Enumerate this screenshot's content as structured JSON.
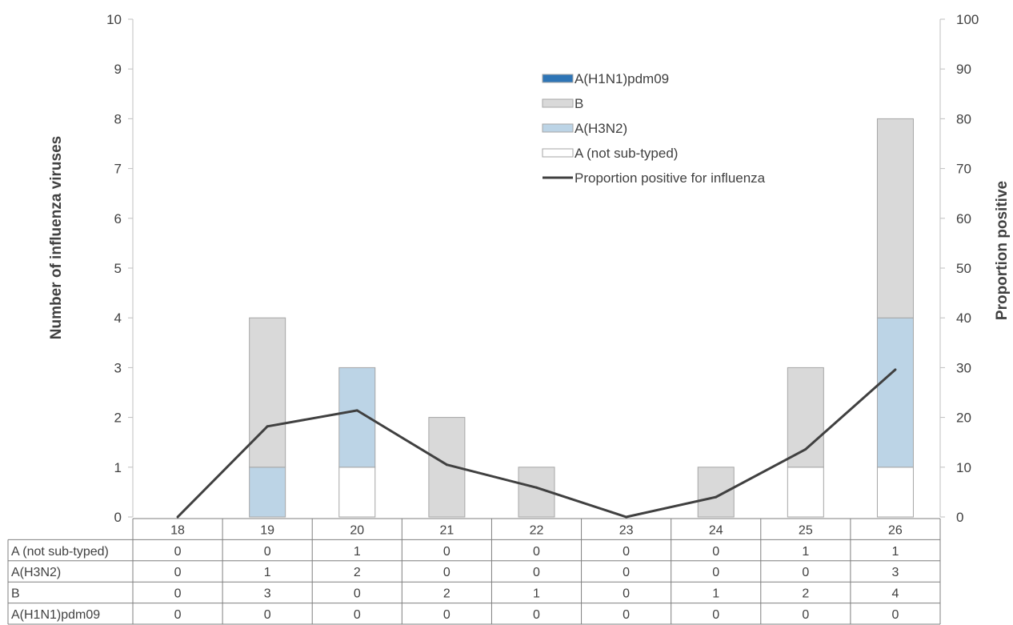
{
  "chart_data": {
    "type": "bar",
    "stacked": true,
    "categories": [
      "18",
      "19",
      "20",
      "21",
      "22",
      "23",
      "24",
      "25",
      "26"
    ],
    "series": [
      {
        "name": "A (not sub-typed)",
        "values": [
          0,
          0,
          1,
          0,
          0,
          0,
          0,
          1,
          1
        ],
        "color": "#ffffff"
      },
      {
        "name": "A(H3N2)",
        "values": [
          0,
          1,
          2,
          0,
          0,
          0,
          0,
          0,
          3
        ],
        "color": "#bcd4e6"
      },
      {
        "name": "B",
        "values": [
          0,
          3,
          0,
          2,
          1,
          0,
          1,
          2,
          4
        ],
        "color": "#d9d9d9"
      },
      {
        "name": "A(H1N1)pdm09",
        "values": [
          0,
          0,
          0,
          0,
          0,
          0,
          0,
          0,
          0
        ],
        "color": "#2e75b6"
      }
    ],
    "line": {
      "name": "Proportion positive for influenza",
      "values": [
        0,
        18.2,
        21.4,
        10.5,
        5.9,
        0,
        4.0,
        13.6,
        29.6
      ],
      "color": "#404040",
      "axis": "right"
    },
    "legend_order": [
      "A(H1N1)pdm09",
      "B",
      "A(H3N2)",
      "A (not sub-typed)",
      "Proportion positive for influenza"
    ],
    "legend_position": "top-right",
    "ylabel": "Number of influenza viruses",
    "ylabel_right": "Proportion positive",
    "ylim": [
      0,
      10
    ],
    "ylim_right": [
      0,
      100
    ],
    "yticks": [
      "0",
      "1",
      "2",
      "3",
      "4",
      "5",
      "6",
      "7",
      "8",
      "9",
      "10"
    ],
    "yticks_right": [
      "0",
      "10",
      "20",
      "30",
      "40",
      "50",
      "60",
      "70",
      "80",
      "90",
      "100"
    ],
    "grid": false,
    "data_table": {
      "rows": [
        {
          "label": "A (not sub-typed)",
          "values": [
            "0",
            "0",
            "1",
            "0",
            "0",
            "0",
            "0",
            "1",
            "1"
          ]
        },
        {
          "label": "A(H3N2)",
          "values": [
            "0",
            "1",
            "2",
            "0",
            "0",
            "0",
            "0",
            "0",
            "3"
          ]
        },
        {
          "label": "B",
          "values": [
            "0",
            "3",
            "0",
            "2",
            "1",
            "0",
            "1",
            "2",
            "4"
          ]
        },
        {
          "label": "A(H1N1)pdm09",
          "values": [
            "0",
            "0",
            "0",
            "0",
            "0",
            "0",
            "0",
            "0",
            "0"
          ]
        }
      ]
    }
  }
}
